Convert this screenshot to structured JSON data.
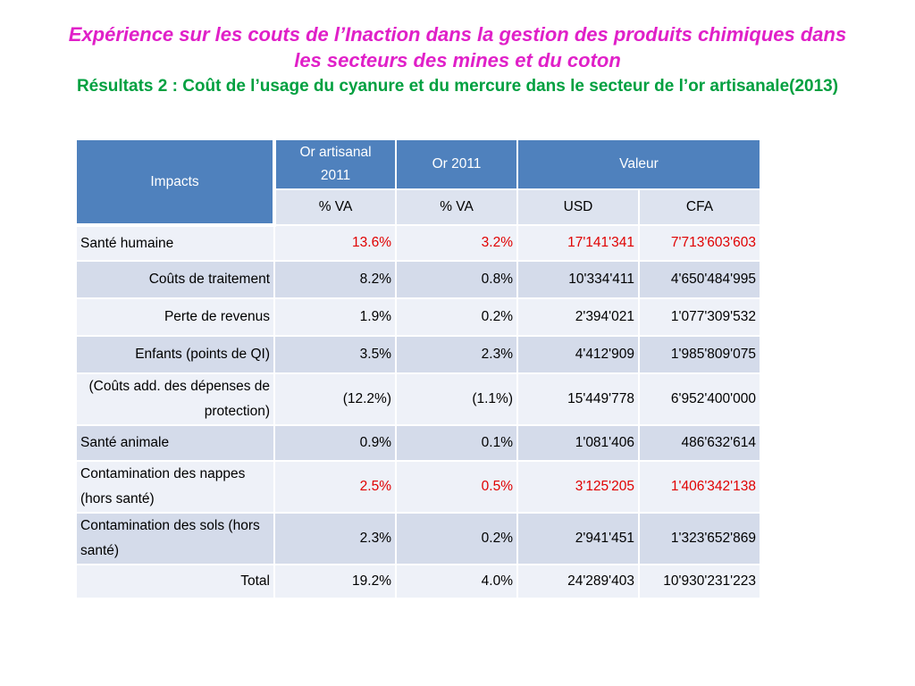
{
  "title": {
    "main": "Expérience sur les couts de l’Inaction dans la gestion des produits chimiques dans les secteurs des mines et du coton",
    "sub": "Résultats 2 : Coût de l’usage du cyanure et du mercure dans le secteur de l’or artisanale(2013)"
  },
  "colors": {
    "title_main": "#e020c8",
    "title_sub": "#00a040",
    "header": "#4f81bd",
    "highlight": "#e00000"
  },
  "table": {
    "headers": {
      "impacts": "Impacts",
      "or_artisanal": "Or artisanal 2011",
      "or_2011": "Or  2011",
      "valeur": "Valeur"
    },
    "units": [
      "% VA",
      "% VA",
      "USD",
      "CFA"
    ],
    "rows": [
      {
        "label": "Santé humaine",
        "values": [
          "13.6%",
          "3.2%",
          "17'141'341",
          "7'713'603'603"
        ],
        "align": "left",
        "highlight": true
      },
      {
        "label": "Coûts de traitement",
        "values": [
          "8.2%",
          "0.8%",
          "10'334'411",
          "4'650'484'995"
        ],
        "align": "right",
        "highlight": false
      },
      {
        "label": "Perte de revenus",
        "values": [
          "1.9%",
          "0.2%",
          "2'394'021",
          "1'077'309'532"
        ],
        "align": "right",
        "highlight": false
      },
      {
        "label": "Enfants (points de QI)",
        "values": [
          "3.5%",
          "2.3%",
          "4'412'909",
          "1'985'809'075"
        ],
        "align": "right",
        "highlight": false
      },
      {
        "label": "(Coûts add. des dépenses de protection)",
        "values": [
          "(12.2%)",
          "(1.1%)",
          "15'449'778",
          "6'952'400'000"
        ],
        "align": "right",
        "highlight": false
      },
      {
        "label": "Santé animale",
        "values": [
          "0.9%",
          "0.1%",
          "1'081'406",
          "486'632'614"
        ],
        "align": "left",
        "highlight": false
      },
      {
        "label": "Contamination des nappes (hors santé)",
        "values": [
          "2.5%",
          "0.5%",
          "3'125'205",
          "1'406'342'138"
        ],
        "align": "left",
        "highlight": true
      },
      {
        "label": "Contamination des sols (hors santé)",
        "values": [
          "2.3%",
          "0.2%",
          "2'941'451",
          "1'323'652'869"
        ],
        "align": "left",
        "highlight": false
      },
      {
        "label": "Total",
        "values": [
          "19.2%",
          "4.0%",
          "24'289'403",
          "10'930'231'223"
        ],
        "align": "right",
        "highlight": false
      }
    ]
  }
}
